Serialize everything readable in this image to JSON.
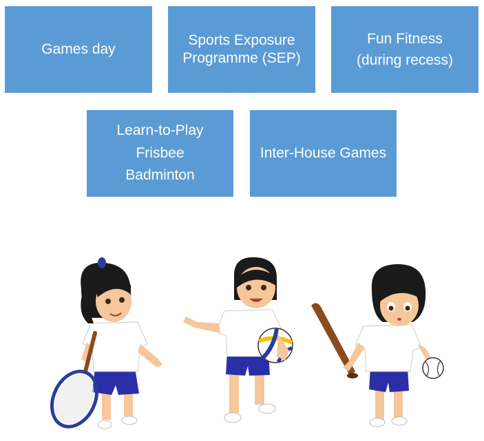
{
  "boxes": [
    {
      "lines": [
        "Games day"
      ]
    },
    {
      "lines": [
        "Sports Exposure",
        "Programme (SEP)"
      ]
    },
    {
      "lines": [
        "Fun Fitness",
        "(during recess)"
      ]
    },
    {
      "lines": [
        "Learn-to-Play",
        "Frisbee",
        "Badminton"
      ]
    },
    {
      "lines": [
        "Inter-House Games"
      ]
    }
  ],
  "colors": {
    "box_fill": "#5b9bd5",
    "box_text": "#ffffff",
    "shirt": "#ffffff",
    "shorts": "#2a2fa8",
    "skin": "#f5c79a",
    "hair": "#1a1a1a"
  },
  "illustration": {
    "figures": [
      "girl-with-tennis-racket",
      "girl-with-volleyball",
      "girl-with-baseball-bat"
    ]
  }
}
